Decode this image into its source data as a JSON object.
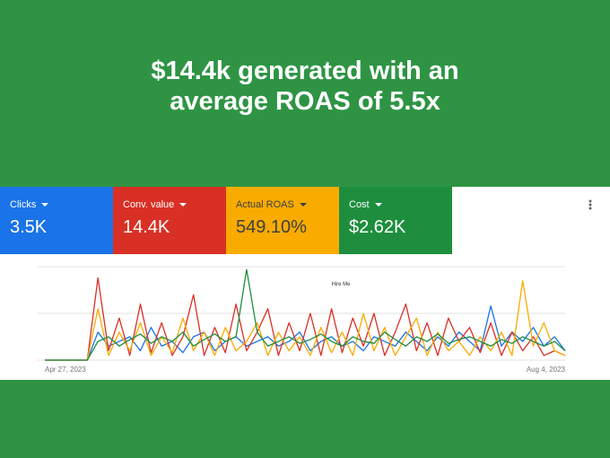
{
  "header": {
    "title_line1": "$14.4k generated with an",
    "title_line2": "average ROAS of 5.5x"
  },
  "metrics": [
    {
      "label": "Clicks",
      "value": "3.5K",
      "color": "#1a73e8"
    },
    {
      "label": "Conv. value",
      "value": "14.4K",
      "color": "#d93025"
    },
    {
      "label": "Actual ROAS",
      "value": "549.10%",
      "color": "#f9ab00"
    },
    {
      "label": "Cost",
      "value": "$2.62K",
      "color": "#1e8e3e"
    }
  ],
  "chart_data": {
    "type": "line",
    "annotation": "Hire Me",
    "categories": [
      "Apr 27, 2023",
      null,
      null,
      null,
      null,
      null,
      null,
      null,
      null,
      null,
      null,
      null,
      null,
      null,
      null,
      null,
      null,
      null,
      null,
      null,
      null,
      null,
      null,
      null,
      null,
      null,
      null,
      null,
      null,
      null,
      null,
      null,
      null,
      null,
      null,
      null,
      null,
      null,
      null,
      null,
      null,
      null,
      null,
      null,
      null,
      null,
      null,
      null,
      null,
      "Aug 4, 2023"
    ],
    "ylim": [
      0,
      100
    ],
    "series": [
      {
        "name": "Clicks",
        "color": "#1a73e8",
        "values": [
          0,
          0,
          0,
          0,
          0,
          30,
          15,
          20,
          25,
          10,
          35,
          15,
          20,
          8,
          25,
          30,
          10,
          20,
          25,
          15,
          20,
          25,
          15,
          20,
          30,
          10,
          20,
          25,
          15,
          20,
          10,
          25,
          20,
          15,
          30,
          20,
          10,
          25,
          15,
          30,
          20,
          10,
          58,
          15,
          30,
          20,
          35,
          15,
          25,
          10
        ]
      },
      {
        "name": "Conv. value",
        "color": "#d93025",
        "values": [
          0,
          0,
          0,
          0,
          0,
          88,
          10,
          45,
          5,
          60,
          8,
          40,
          5,
          25,
          70,
          5,
          35,
          8,
          60,
          10,
          30,
          55,
          5,
          40,
          10,
          50,
          5,
          55,
          8,
          45,
          15,
          50,
          5,
          30,
          60,
          10,
          40,
          5,
          45,
          20,
          35,
          8,
          40,
          5,
          30,
          10,
          25,
          5,
          10,
          5
        ]
      },
      {
        "name": "Actual ROAS",
        "color": "#f9ab00",
        "values": [
          0,
          0,
          0,
          0,
          0,
          55,
          5,
          30,
          10,
          40,
          5,
          25,
          8,
          45,
          10,
          30,
          5,
          35,
          10,
          20,
          40,
          5,
          30,
          10,
          25,
          5,
          35,
          8,
          30,
          5,
          50,
          10,
          35,
          5,
          25,
          45,
          5,
          30,
          10,
          20,
          5,
          25,
          10,
          30,
          5,
          85,
          15,
          40,
          10,
          5
        ]
      },
      {
        "name": "Cost",
        "color": "#1e8e3e",
        "values": [
          0,
          0,
          0,
          0,
          0,
          20,
          25,
          15,
          22,
          28,
          18,
          25,
          20,
          30,
          15,
          22,
          28,
          20,
          25,
          97,
          30,
          15,
          20,
          25,
          18,
          22,
          28,
          20,
          15,
          25,
          20,
          18,
          30,
          22,
          15,
          25,
          20,
          28,
          18,
          22,
          25,
          20,
          15,
          22,
          18,
          25,
          20,
          15,
          20,
          10
        ]
      }
    ]
  }
}
